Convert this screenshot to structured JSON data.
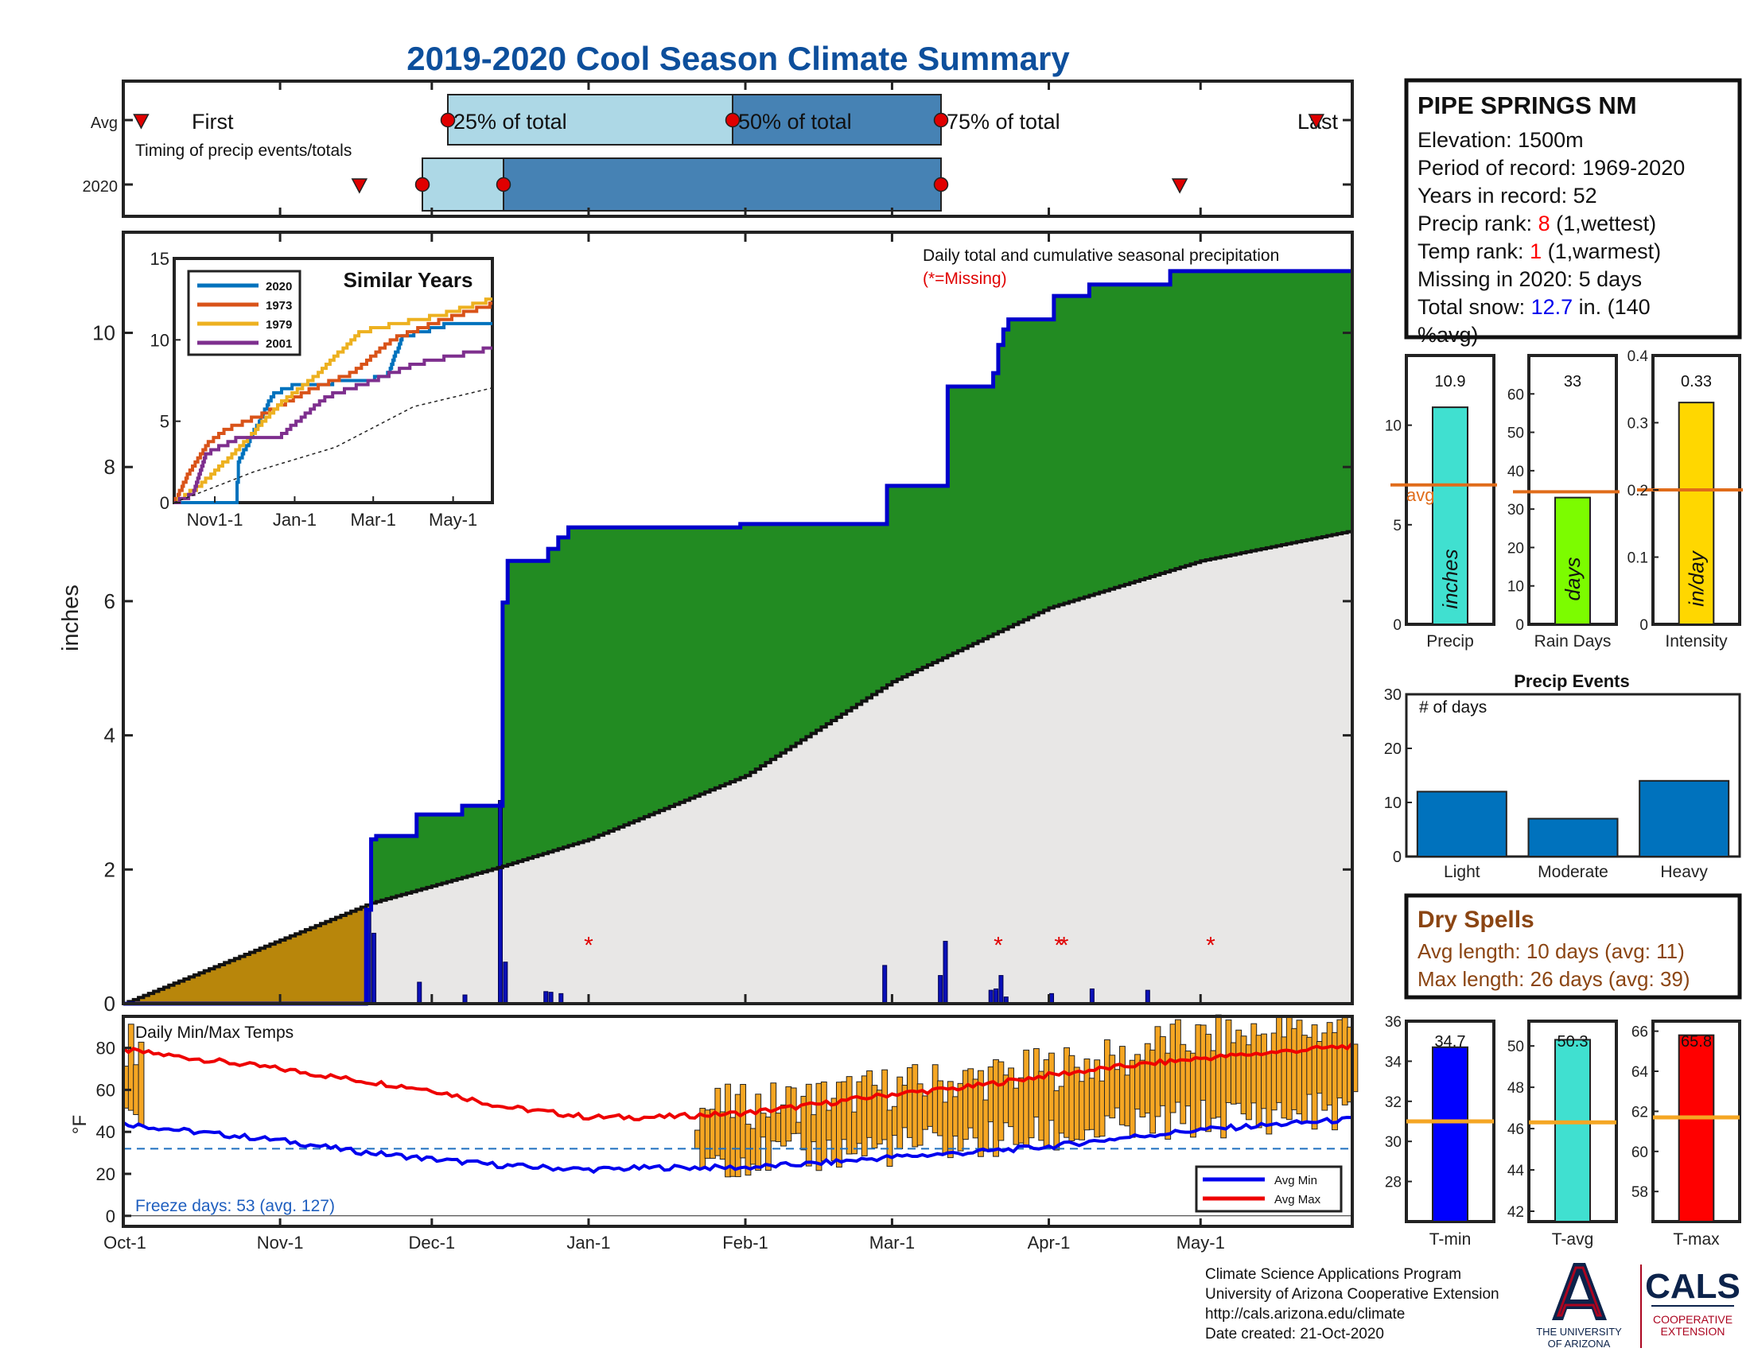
{
  "title": "2019-2020 Cool Season Climate Summary",
  "timing": {
    "row_avg": "Avg",
    "row_year": "2020",
    "first": "First",
    "last": "Last",
    "p25": "25% of total",
    "p50": "50% of total",
    "p75": "75% of total",
    "caption": "Timing of precip events/totals",
    "avg_markers": [
      "2019-10-05",
      "2019-11-29",
      "2020-01-29",
      "2020-03-11",
      "2020-05-22"
    ],
    "year_markers": [
      "2019-11-17",
      "2019-11-27",
      "2019-12-14",
      "2020-03-11",
      "2020-04-25"
    ]
  },
  "station": {
    "name": "PIPE SPRINGS NM",
    "elevation": "Elevation: 1500m",
    "period": "Period of record: 1969-2020",
    "years": "Years in record: 52",
    "precip_rank_pre": "Precip rank: ",
    "precip_rank_val": "8",
    "precip_rank_post": " (1,wettest)",
    "temp_rank_pre": "Temp rank: ",
    "temp_rank_val": "1",
    "temp_rank_post": " (1,warmest)",
    "missing": "Missing in 2020: 5 days",
    "snow_pre": "Total snow: ",
    "snow_val": "12.7",
    "snow_post": " in. (140",
    "snow_post2": "%avg)"
  },
  "main_chart": {
    "ylabel": "inches",
    "annotation": "Daily total and cumulative seasonal precipitation",
    "missing_note": "(*=Missing)",
    "y_ticks": [
      "0",
      "2",
      "4",
      "6",
      "8",
      "10"
    ],
    "x_ticks": [
      "Oct-1",
      "Nov-1",
      "Dec-1",
      "Jan-1",
      "Feb-1",
      "Mar-1",
      "Apr-1",
      "May-1"
    ]
  },
  "inset": {
    "title": "Similar Years",
    "y_ticks": [
      "0",
      "5",
      "10",
      "15"
    ],
    "x_ticks": [
      "Nov1-1",
      "Jan-1",
      "Mar-1",
      "May-1"
    ],
    "legend": [
      "2020",
      "1973",
      "1979",
      "2001"
    ]
  },
  "summary_bars": {
    "precip_value": "10.9",
    "precip_unit": "inches",
    "precip_label": "Precip",
    "precip_avg_label": "avg",
    "raindays_value": "33",
    "raindays_unit": "days",
    "raindays_label": "Rain Days",
    "intensity_value": "0.33",
    "intensity_unit": "in/day",
    "intensity_label": "Intensity"
  },
  "events": {
    "title": "Precip Events",
    "ylabel": "# of days",
    "categories": [
      "Light",
      "Moderate",
      "Heavy"
    ],
    "values": [
      12,
      7,
      14
    ]
  },
  "dry_spells": {
    "title": "Dry Spells",
    "avg_length": "Avg length: 10 days (avg: 11)",
    "max_length": "Max length: 26 days (avg: 39)"
  },
  "temps": {
    "title": "Daily Min/Max Temps",
    "ylabel": "°F",
    "freeze": "Freeze days: 53 (avg. 127)",
    "legend_min": "Avg Min",
    "legend_max": "Avg Max",
    "tmin_value": "34.7",
    "tmin_label": "T-min",
    "tavg_value": "50.3",
    "tavg_label": "T-avg",
    "tmax_value": "65.8",
    "tmax_label": "T-max"
  },
  "footer": {
    "line1": "Climate Science Applications Program",
    "line2": "University of Arizona Cooperative Extension",
    "line3": "http://cals.arizona.edu/climate",
    "line4": " Date created: 21-Oct-2020",
    "ua_name1": "THE UNIVERSITY",
    "ua_name2": "OF ARIZONA",
    "cals": "CALS",
    "cals_sub1": "COOPERATIVE",
    "cals_sub2": "EXTENSION"
  },
  "colors": {
    "title": "#0d4f9c",
    "green": "#228b22",
    "gray": "#e8e7e6",
    "brown": "#b8860b",
    "blue": "#0000cc",
    "red": "#ff0000",
    "orange": "#f5a623",
    "avg_line": "#e06c1a",
    "ua_red": "#ab0520",
    "ua_navy": "#0c234b"
  },
  "chart_data": [
    {
      "type": "area",
      "title": "Daily total and cumulative seasonal precipitation",
      "ylabel": "inches",
      "ylim": [
        0,
        11.5
      ],
      "xlim": [
        "2019-10-01",
        "2020-05-31"
      ],
      "series": [
        {
          "name": "2020",
          "x": [
            "2019-10-01",
            "2019-11-18",
            "2019-11-19",
            "2019-11-20",
            "2019-11-27",
            "2019-11-28",
            "2019-12-07",
            "2019-12-14",
            "2019-12-15",
            "2019-12-16",
            "2019-12-23",
            "2019-12-24",
            "2019-12-26",
            "2019-12-28",
            "2020-01-01",
            "2020-01-31",
            "2020-02-29",
            "2020-03-11",
            "2020-03-12",
            "2020-03-20",
            "2020-03-21",
            "2020-03-22",
            "2020-03-23",
            "2020-03-24",
            "2020-03-27",
            "2020-04-02",
            "2020-04-05",
            "2020-04-09",
            "2020-04-18",
            "2020-04-25",
            "2020-05-31"
          ],
          "values": [
            0,
            1.4,
            2.45,
            2.5,
            2.5,
            2.82,
            2.95,
            2.95,
            5.98,
            6.6,
            6.6,
            6.78,
            6.95,
            7.1,
            7.1,
            7.15,
            7.72,
            7.72,
            9.2,
            9.2,
            9.4,
            9.82,
            10.05,
            10.2,
            10.2,
            10.55,
            10.55,
            10.72,
            10.72,
            10.92,
            10.92
          ]
        },
        {
          "name": "avg",
          "x": [
            "2019-10-01",
            "2019-11-19",
            "2019-12-15",
            "2020-01-01",
            "2020-02-01",
            "2020-03-01",
            "2020-04-01",
            "2020-05-01",
            "2020-05-31"
          ],
          "values": [
            0,
            1.5,
            2.05,
            2.45,
            3.4,
            4.8,
            5.9,
            6.6,
            7.05
          ]
        }
      ]
    },
    {
      "type": "bar",
      "title": "Daily precipitation",
      "x": [
        "2019-11-18",
        "2019-11-19",
        "2019-11-28",
        "2019-12-07",
        "2019-12-14",
        "2019-12-15",
        "2019-12-23",
        "2019-12-24",
        "2019-12-26",
        "2020-02-28",
        "2020-03-10",
        "2020-03-11",
        "2020-03-20",
        "2020-03-21",
        "2020-03-22",
        "2020-03-23",
        "2020-04-01",
        "2020-04-09",
        "2020-04-20"
      ],
      "values": [
        1.4,
        1.05,
        0.32,
        0.13,
        3.03,
        0.62,
        0.18,
        0.17,
        0.15,
        0.57,
        0.42,
        0.93,
        0.2,
        0.22,
        0.42,
        0.1,
        0.15,
        0.22,
        0.2
      ]
    },
    {
      "type": "line",
      "title": "Similar Years",
      "ylim": [
        0,
        15
      ],
      "series": [
        {
          "name": "2020",
          "x": [
            "2019-10-01",
            "2019-11-17",
            "2019-11-19",
            "2019-12-15",
            "2019-12-26",
            "2020-03-11",
            "2020-03-23",
            "2020-04-25",
            "2020-05-31"
          ],
          "values": [
            0,
            0,
            2.5,
            6.6,
            7.1,
            7.7,
            10.2,
            10.9,
            10.9
          ]
        },
        {
          "name": "1973",
          "x": [
            "2019-10-01",
            "2019-10-10",
            "2019-10-25",
            "2019-11-10",
            "2019-12-10",
            "2020-01-15",
            "2020-02-15",
            "2020-03-15",
            "2020-04-15",
            "2020-05-31"
          ],
          "values": [
            0,
            1.5,
            3.5,
            4.5,
            5.5,
            7,
            8,
            10,
            11,
            12.2
          ]
        },
        {
          "name": "1979",
          "x": [
            "2019-10-01",
            "2019-10-20",
            "2019-11-15",
            "2019-12-20",
            "2020-01-20",
            "2020-02-20",
            "2020-03-20",
            "2020-04-20",
            "2020-05-31"
          ],
          "values": [
            0,
            1,
            3,
            6,
            8,
            10.5,
            11,
            11.5,
            12.5
          ]
        },
        {
          "name": "2001",
          "x": [
            "2019-10-01",
            "2019-10-15",
            "2019-10-25",
            "2019-11-20",
            "2019-12-20",
            "2020-01-25",
            "2020-03-01",
            "2020-04-01",
            "2020-05-31"
          ],
          "values": [
            0,
            0.5,
            3,
            4,
            4,
            6.5,
            7.5,
            8.5,
            9.5
          ]
        },
        {
          "name": "avg",
          "x": [
            "2019-10-01",
            "2019-12-01",
            "2020-02-01",
            "2020-04-01",
            "2020-05-31"
          ],
          "values": [
            0,
            1.9,
            3.4,
            5.9,
            7.05
          ]
        }
      ]
    },
    {
      "type": "bar",
      "title": "Precip Events",
      "categories": [
        "Light",
        "Moderate",
        "Heavy"
      ],
      "values": [
        12,
        7,
        14
      ],
      "ylim": [
        0,
        30
      ]
    },
    {
      "type": "bar",
      "categories": [
        "Precip",
        "Rain Days",
        "Intensity"
      ],
      "values": [
        10.9,
        33,
        0.33
      ],
      "avg": [
        7.0,
        34.5,
        0.2
      ],
      "ylims": [
        [
          0,
          13.5
        ],
        [
          0,
          70
        ],
        [
          0,
          0.4
        ]
      ]
    },
    {
      "type": "line",
      "title": "Daily Min/Max Temps",
      "ylabel": "°F",
      "ylim": [
        -5,
        95
      ],
      "series": [
        {
          "name": "Avg Max",
          "x": [
            "2019-10-01",
            "2019-10-15",
            "2019-11-01",
            "2019-11-15",
            "2019-12-01",
            "2019-12-15",
            "2020-01-01",
            "2020-01-15",
            "2020-02-01",
            "2020-02-15",
            "2020-03-01",
            "2020-03-15",
            "2020-04-01",
            "2020-04-15",
            "2020-05-01",
            "2020-05-31"
          ],
          "values": [
            79,
            75,
            70,
            65,
            60,
            52,
            47,
            47,
            49,
            53,
            58,
            61,
            67,
            71,
            75,
            81
          ]
        },
        {
          "name": "Avg Min",
          "x": [
            "2019-10-01",
            "2019-10-15",
            "2019-11-01",
            "2019-11-15",
            "2019-12-01",
            "2019-12-15",
            "2020-01-01",
            "2020-01-15",
            "2020-02-01",
            "2020-02-15",
            "2020-03-01",
            "2020-03-15",
            "2020-04-01",
            "2020-04-15",
            "2020-05-01",
            "2020-05-31"
          ],
          "values": [
            44,
            40,
            36,
            31,
            27,
            24,
            22,
            23,
            23,
            25,
            28,
            30,
            33,
            37,
            41,
            46
          ]
        }
      ],
      "freeze_line": 32
    },
    {
      "type": "bar",
      "categories": [
        "T-min",
        "T-avg",
        "T-max"
      ],
      "values": [
        34.7,
        50.3,
        65.8
      ],
      "avg": [
        31.0,
        46.3,
        61.7
      ],
      "ylims": [
        [
          26,
          36
        ],
        [
          41.5,
          51.2
        ],
        [
          56.5,
          66.5
        ]
      ]
    }
  ]
}
